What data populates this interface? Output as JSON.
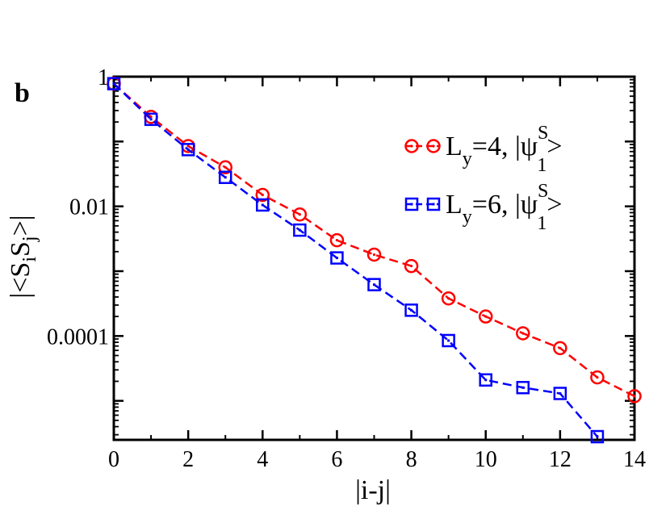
{
  "panel_label": "b",
  "chart_data": {
    "type": "line",
    "title": "",
    "xlabel": "|i-j|",
    "ylabel": "|<S_i S_j>|",
    "xlim": [
      0,
      14
    ],
    "ylim": [
      2.5e-06,
      1.0
    ],
    "yscale": "log",
    "grid": false,
    "legend_position": "top-right",
    "x_ticks": [
      0,
      2,
      4,
      6,
      8,
      10,
      12,
      14
    ],
    "x_tick_labels": [
      "0",
      "2",
      "4",
      "6",
      "8",
      "10",
      "12",
      "14"
    ],
    "y_ticks": [
      1,
      0.01,
      0.0001
    ],
    "y_tick_labels": [
      "1",
      "0.01",
      "0.0001"
    ],
    "series": [
      {
        "name": "L_y=4, |ψ^S_1>",
        "legend": {
          "L": "L",
          "sub": "y",
          "mid": "=4, |ψ",
          "sup": "S",
          "sub2": "1",
          "end": ">"
        },
        "color": "#ff0000",
        "marker": "circle",
        "x": [
          0,
          1,
          2,
          3,
          4,
          5,
          6,
          7,
          8,
          9,
          10,
          11,
          12,
          13,
          14
        ],
        "y": [
          0.78,
          0.24,
          0.085,
          0.04,
          0.015,
          0.0075,
          0.003,
          0.0018,
          0.0012,
          0.00038,
          0.0002,
          0.00011,
          6.5e-05,
          2.3e-05,
          1.18e-05
        ]
      },
      {
        "name": "L_y=6, |ψ^S_1>",
        "legend": {
          "L": "L",
          "sub": "y",
          "mid": "=6, |ψ",
          "sup": "S",
          "sub2": "1",
          "end": ">"
        },
        "color": "#0000ff",
        "marker": "square",
        "x": [
          0,
          1,
          2,
          3,
          4,
          5,
          6,
          7,
          8,
          9,
          10,
          11,
          12,
          13
        ],
        "y": [
          0.78,
          0.22,
          0.075,
          0.028,
          0.0105,
          0.0043,
          0.0016,
          0.00062,
          0.00025,
          8.5e-05,
          2.1e-05,
          1.6e-05,
          1.3e-05,
          2.8e-06
        ]
      }
    ]
  }
}
